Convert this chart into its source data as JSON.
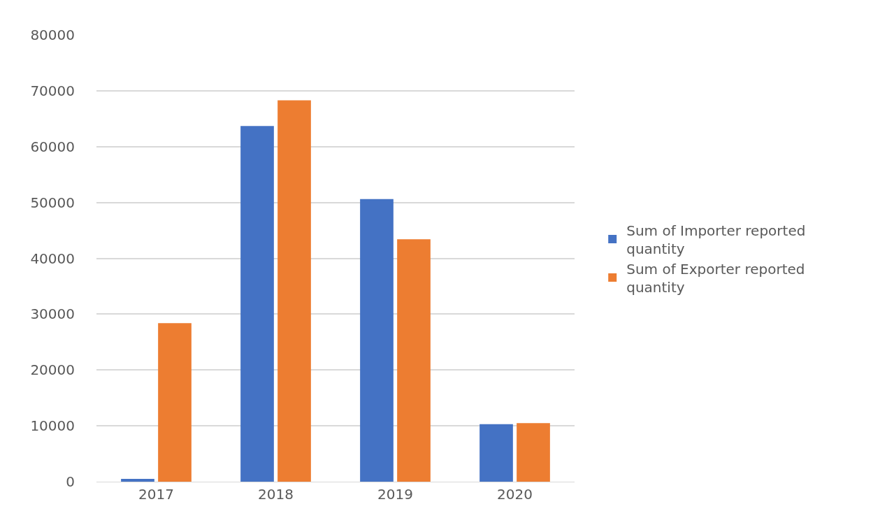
{
  "chart_data": {
    "type": "bar",
    "categories": [
      "2017",
      "2018",
      "2019",
      "2020"
    ],
    "series": [
      {
        "name": "Sum of Importer reported quantity",
        "color": "#4472c4",
        "values": [
          500,
          63700,
          50600,
          10300
        ]
      },
      {
        "name": "Sum of Exporter reported quantity",
        "color": "#ed7d31",
        "values": [
          28400,
          68300,
          43400,
          10500
        ]
      }
    ],
    "ylim": [
      0,
      80000
    ],
    "yticks": [
      0,
      10000,
      20000,
      30000,
      40000,
      50000,
      60000,
      70000,
      80000
    ],
    "grid": "y",
    "legend": "right"
  }
}
